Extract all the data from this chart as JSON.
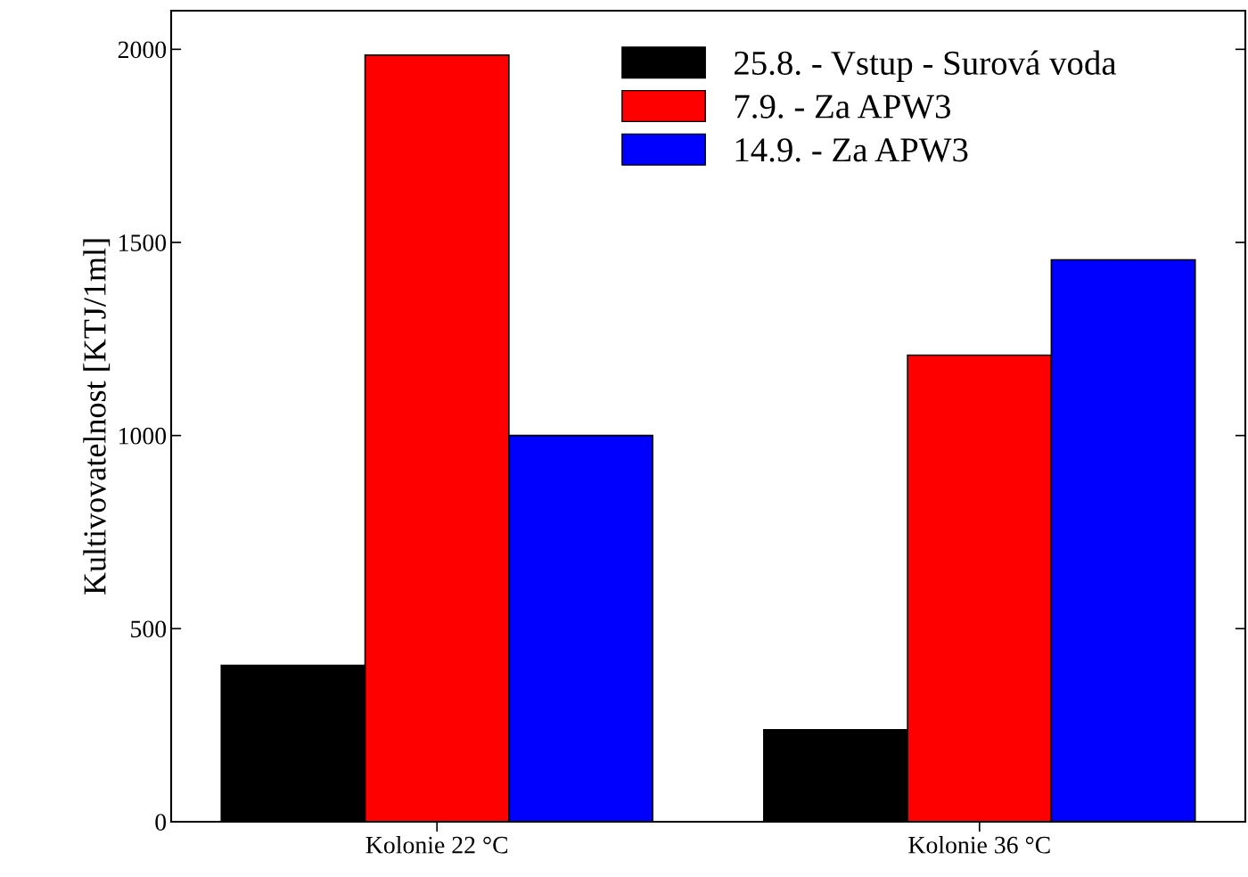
{
  "chart_data": {
    "type": "bar",
    "ylabel": "Kultivovatelnost [KTJ/1ml]",
    "categories": [
      "Kolonie 22 °C",
      "Kolonie 36 °C"
    ],
    "series": [
      {
        "name": "25.8. - Vstup - Surová voda",
        "color": "#000000",
        "values": [
          405,
          238
        ]
      },
      {
        "name": "7.9. - Za APW3",
        "color": "#ff0000",
        "values": [
          1985,
          1208
        ]
      },
      {
        "name": "14.9. - Za APW3",
        "color": "#0000ff",
        "values": [
          1000,
          1455
        ]
      }
    ],
    "ylim": [
      0,
      2100
    ],
    "yticks": [
      0,
      500,
      1000,
      1500,
      2000
    ],
    "grid": false,
    "legend": "top"
  }
}
